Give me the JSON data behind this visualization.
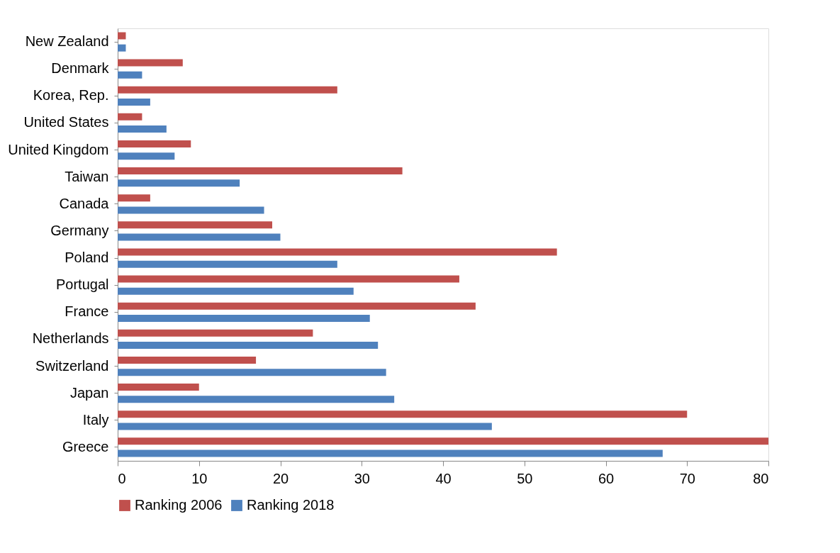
{
  "chart_data": {
    "type": "bar",
    "orientation": "horizontal",
    "categories": [
      "New Zealand",
      "Denmark",
      "Korea, Rep.",
      "United States",
      "United Kingdom",
      "Taiwan",
      "Canada",
      "Germany",
      "Poland",
      "Portugal",
      "France",
      "Netherlands",
      "Switzerland",
      "Japan",
      "Italy",
      "Greece"
    ],
    "series": [
      {
        "name": "Ranking 2006",
        "color": "#c0504d",
        "values": [
          1,
          8,
          27,
          3,
          9,
          35,
          4,
          19,
          54,
          42,
          44,
          24,
          17,
          10,
          70,
          80
        ]
      },
      {
        "name": "Ranking 2018",
        "color": "#4f81bd",
        "values": [
          1,
          3,
          4,
          6,
          7,
          15,
          18,
          20,
          27,
          29,
          31,
          32,
          33,
          34,
          46,
          67
        ]
      }
    ],
    "xlim": [
      0,
      80
    ],
    "xticks": [
      0,
      10,
      20,
      30,
      40,
      50,
      60,
      70,
      80
    ],
    "grid": false,
    "legend": "bottom"
  }
}
